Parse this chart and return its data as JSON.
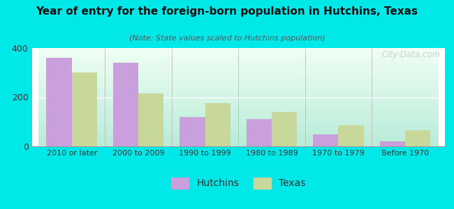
{
  "title": "Year of entry for the foreign-born population in Hutchins, Texas",
  "subtitle": "(Note: State values scaled to Hutchins population)",
  "categories": [
    "2010 or later",
    "2000 to 2009",
    "1990 to 1999",
    "1980 to 1989",
    "1970 to 1979",
    "Before 1970"
  ],
  "hutchins_values": [
    360,
    340,
    120,
    110,
    47,
    20
  ],
  "texas_values": [
    300,
    215,
    175,
    140,
    85,
    65
  ],
  "hutchins_color": "#c9a0dc",
  "texas_color": "#c8d89a",
  "background_outer": "#00e8e8",
  "background_inner_topleft": "#e8f5e0",
  "background_inner_topright": "#f5fff8",
  "background_inner_bottom": "#b8ecd8",
  "ylim": [
    0,
    400
  ],
  "yticks": [
    0,
    200,
    400
  ],
  "bar_width": 0.38,
  "legend_hutchins": "Hutchins",
  "legend_texas": "Texas",
  "watermark": "City-Data.com"
}
